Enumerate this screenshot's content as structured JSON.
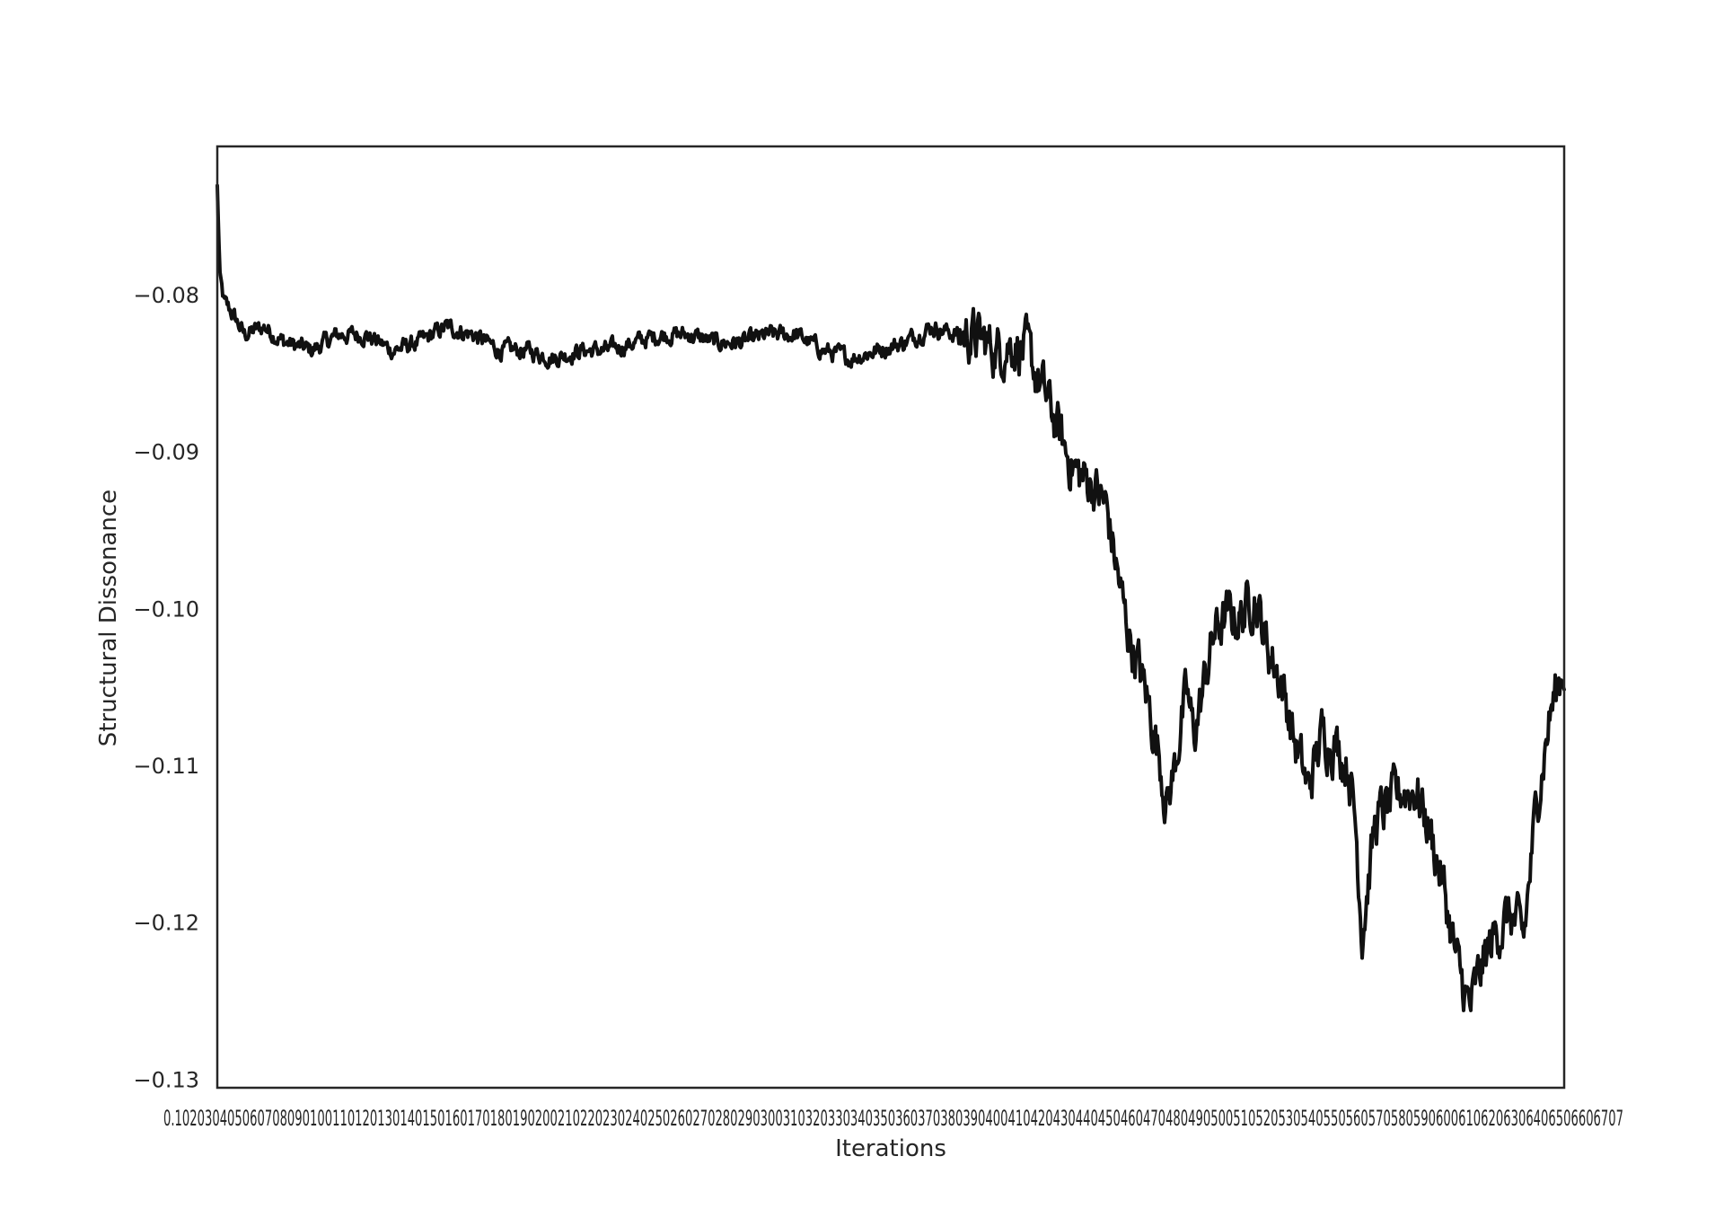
{
  "chart_data": {
    "type": "line",
    "title": "",
    "xlabel": "Iterations",
    "ylabel": "Structural Dissonance",
    "ylim": [
      -0.1305,
      -0.0705
    ],
    "yticks": [
      -0.08,
      -0.09,
      -0.1,
      -0.11,
      -0.12,
      -0.13
    ],
    "ytick_labels": [
      "−0.08",
      "−0.09",
      "−0.10",
      "−0.11",
      "−0.12",
      "−0.13"
    ],
    "xtick_text": "0.1020304050607080901001101201301401501601701801902002102202302402502602702802903003103203303403503603703803904004104204304404504604704804905005105205305405505605705805906006106206306406506606707",
    "grid": false,
    "legend": "none",
    "colors": {
      "line": "#111111",
      "frame": "#262626"
    },
    "series": [
      {
        "x": [
          0.0,
          0.002,
          0.005,
          0.01,
          0.02,
          0.035,
          0.05,
          0.07,
          0.09,
          0.11,
          0.13,
          0.15,
          0.17,
          0.19,
          0.21,
          0.23,
          0.25,
          0.27,
          0.29,
          0.31,
          0.33,
          0.35,
          0.37,
          0.39,
          0.41,
          0.43,
          0.45,
          0.47,
          0.49,
          0.51,
          0.53,
          0.55,
          0.56,
          0.57,
          0.58,
          0.59,
          0.6,
          0.61,
          0.62,
          0.63,
          0.64,
          0.65,
          0.66,
          0.67,
          0.675,
          0.68,
          0.69,
          0.7,
          0.705,
          0.71,
          0.715,
          0.72,
          0.725,
          0.73,
          0.74,
          0.75,
          0.76,
          0.77,
          0.78,
          0.79,
          0.8,
          0.81,
          0.82,
          0.83,
          0.84,
          0.845,
          0.85,
          0.86,
          0.87,
          0.88,
          0.89,
          0.9,
          0.91,
          0.92,
          0.93,
          0.94,
          0.95,
          0.96,
          0.97,
          0.98,
          0.99,
          1.0
        ],
        "y": [
          -0.073,
          -0.079,
          -0.0805,
          -0.081,
          -0.0825,
          -0.082,
          -0.083,
          -0.0835,
          -0.0825,
          -0.0825,
          -0.0835,
          -0.083,
          -0.082,
          -0.0825,
          -0.0835,
          -0.0835,
          -0.084,
          -0.0835,
          -0.0835,
          -0.083,
          -0.0825,
          -0.0825,
          -0.083,
          -0.083,
          -0.0825,
          -0.0825,
          -0.0835,
          -0.084,
          -0.0835,
          -0.083,
          -0.082,
          -0.0825,
          -0.0825,
          -0.083,
          -0.0835,
          -0.083,
          -0.0835,
          -0.0855,
          -0.0875,
          -0.09,
          -0.0915,
          -0.092,
          -0.0935,
          -0.0985,
          -0.101,
          -0.1025,
          -0.1055,
          -0.1095,
          -0.1125,
          -0.1105,
          -0.1075,
          -0.1055,
          -0.108,
          -0.106,
          -0.1015,
          -0.1005,
          -0.1005,
          -0.099,
          -0.1025,
          -0.1045,
          -0.1085,
          -0.1115,
          -0.108,
          -0.1085,
          -0.11,
          -0.1135,
          -0.1205,
          -0.1135,
          -0.1125,
          -0.1115,
          -0.1115,
          -0.114,
          -0.1175,
          -0.1225,
          -0.1255,
          -0.1225,
          -0.1205,
          -0.1195,
          -0.121,
          -0.112,
          -0.1065,
          -0.1035
        ]
      }
    ]
  }
}
